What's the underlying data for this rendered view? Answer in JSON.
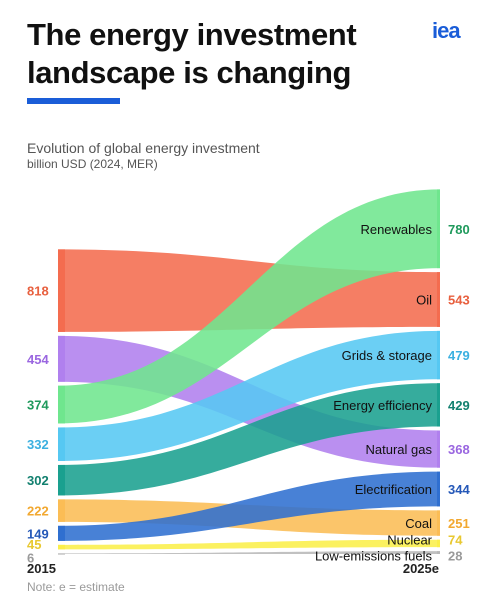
{
  "header": {
    "title_line1": "The energy investment",
    "title_line2": "landscape is changing",
    "logo": "iea",
    "accent_color": "#1a5dd8"
  },
  "subtitle": "Evolution of global energy investment",
  "unit": "billion USD (2024, MER)",
  "note": "Note: e = estimate",
  "chart_data": {
    "type": "sankey-bump",
    "title": "Evolution of global energy investment",
    "unit": "billion USD (2024, MER)",
    "x_labels": [
      "2015",
      "2025e"
    ],
    "series": [
      {
        "name": "Renewables",
        "start": 374,
        "end": 780,
        "color": "#6fe68e",
        "label_color": "#1f9a5c"
      },
      {
        "name": "Oil",
        "start": 818,
        "end": 543,
        "color": "#f46c4f",
        "label_color": "#e8603f"
      },
      {
        "name": "Grids & storage",
        "start": 332,
        "end": 479,
        "color": "#56c8f2",
        "label_color": "#3bb0e0"
      },
      {
        "name": "Energy efficiency",
        "start": 302,
        "end": 429,
        "color": "#1aa08f",
        "label_color": "#12806f"
      },
      {
        "name": "Natural gas",
        "start": 454,
        "end": 368,
        "color": "#b080ee",
        "label_color": "#9a66e0"
      },
      {
        "name": "Electrification",
        "start": 149,
        "end": 344,
        "color": "#2f6fd0",
        "label_color": "#2558b8"
      },
      {
        "name": "Coal",
        "start": 222,
        "end": 251,
        "color": "#fbbd55",
        "label_color": "#f2a830"
      },
      {
        "name": "Nuclear",
        "start": 45,
        "end": 74,
        "color": "#fbef4a",
        "label_color": "#e8c830"
      },
      {
        "name": "Low-emissions fuels",
        "start": 6,
        "end": 28,
        "color": "#b8b8b8",
        "label_color": "#9a9a9a"
      }
    ]
  }
}
